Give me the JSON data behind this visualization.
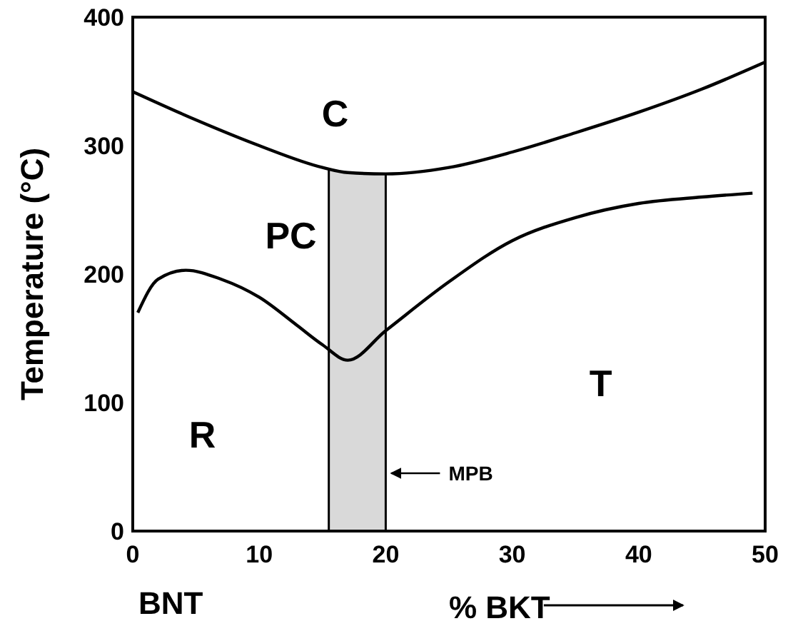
{
  "chart_data": {
    "type": "line",
    "xlabel": "% BKT",
    "ylabel": "Temperature (°C)",
    "xlim": [
      0,
      50
    ],
    "ylim": [
      0,
      400
    ],
    "xticks": [
      0,
      10,
      20,
      30,
      40,
      50
    ],
    "yticks": [
      0,
      100,
      200,
      300,
      400
    ],
    "grid": false,
    "line_style": "solid",
    "series": [
      {
        "color": "#000000",
        "x": [
          0,
          5,
          10,
          15,
          17,
          20,
          25,
          30,
          35,
          40,
          45,
          50
        ],
        "values": [
          342,
          320,
          300,
          283,
          279,
          278,
          283,
          295,
          310,
          326,
          344,
          365
        ]
      },
      {
        "color": "#000000",
        "x": [
          0.4,
          2,
          4.2,
          7,
          10,
          13,
          15,
          17,
          20,
          25,
          30,
          35,
          40,
          45,
          49
        ],
        "values": [
          170,
          196,
          203,
          196,
          182,
          160,
          145,
          133,
          156,
          194,
          226,
          244,
          255,
          260,
          263
        ]
      }
    ],
    "bands": [
      {
        "axis": "x",
        "from": 15.5,
        "to": 20,
        "label": "MPB",
        "color": "#d9d9d9"
      }
    ],
    "annotations": [
      "C",
      "PC",
      "R",
      "T",
      "BNT"
    ]
  }
}
